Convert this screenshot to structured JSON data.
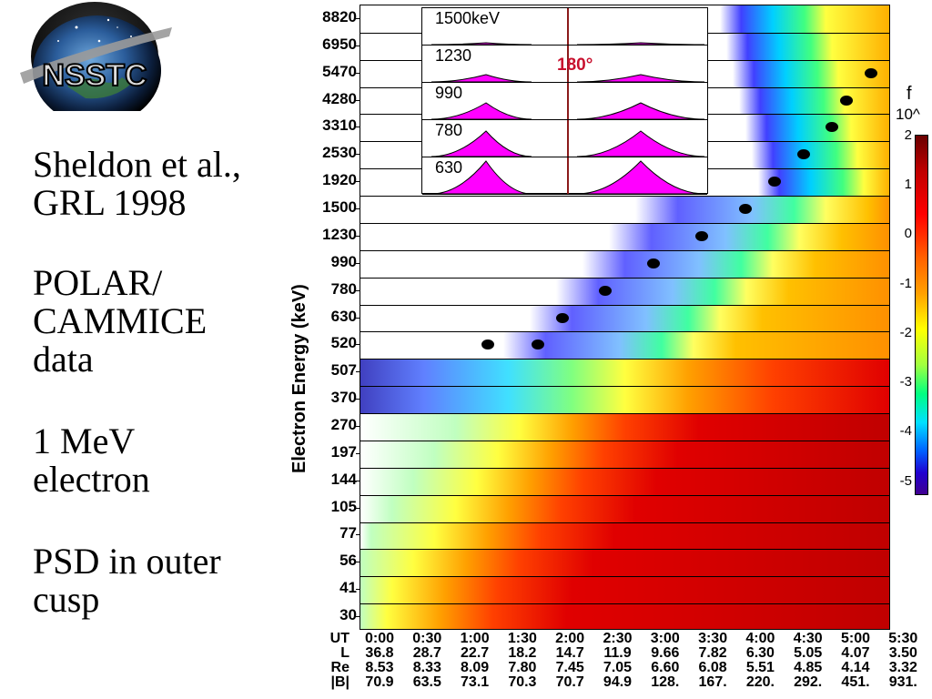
{
  "logo": {
    "text": "NSSTC"
  },
  "caption": {
    "lines": [
      [
        "Sheldon et al.,",
        "GRL 1998"
      ],
      [
        "POLAR/",
        "CAMMICE",
        "data"
      ],
      [
        "1 MeV",
        "electron"
      ],
      [
        "PSD in outer",
        "cusp"
      ]
    ]
  },
  "chart_data": {
    "type": "heatmap",
    "ylabel": "Electron Energy (keV)",
    "energy_channels": [
      "8820",
      "6950",
      "5470",
      "4280",
      "3310",
      "2530",
      "1920",
      "1500",
      "1230",
      "990",
      "780",
      "630",
      "520",
      "507",
      "370",
      "270",
      "197",
      "144",
      "105",
      "77",
      "56",
      "41",
      "30"
    ],
    "x_ticks_ut": [
      "0:00",
      "0:30",
      "1:00",
      "1:30",
      "2:00",
      "2:30",
      "3:00",
      "3:30",
      "4:00",
      "4:30",
      "5:00",
      "5:30"
    ],
    "L": [
      "36.8",
      "28.7",
      "22.7",
      "18.2",
      "14.7",
      "11.9",
      "9.66",
      "7.82",
      "6.30",
      "5.05",
      "4.07",
      "3.50"
    ],
    "Re": [
      "8.53",
      "8.33",
      "8.09",
      "7.80",
      "7.45",
      "7.05",
      "6.60",
      "6.08",
      "5.51",
      "4.85",
      "4.14",
      "3.32"
    ],
    "B": [
      "70.9",
      "63.5",
      "73.1",
      "70.3",
      "70.7",
      "94.9",
      "128.",
      "167.",
      "220.",
      "292.",
      "451.",
      "931."
    ],
    "row_keys": [
      "UT",
      "L",
      "Re",
      "|B|"
    ],
    "colorbar": {
      "title": "f",
      "unit": "10^",
      "ticks": [
        "2",
        "1",
        "0",
        "-1",
        "-2",
        "-3",
        "-4",
        "-5"
      ]
    },
    "inset": {
      "labels": [
        "1500keV",
        "1230",
        "990",
        "780",
        "630"
      ],
      "marker": "180°"
    },
    "dots": [
      {
        "ut_hours": 1.33,
        "energy_channel": "520"
      },
      {
        "ut_hours": 1.85,
        "energy_channel": "520"
      },
      {
        "ut_hours": 2.1,
        "energy_channel": "630"
      },
      {
        "ut_hours": 2.55,
        "energy_channel": "780"
      },
      {
        "ut_hours": 3.05,
        "energy_channel": "990"
      },
      {
        "ut_hours": 3.55,
        "energy_channel": "1230"
      },
      {
        "ut_hours": 4.0,
        "energy_channel": "1500"
      },
      {
        "ut_hours": 4.3,
        "energy_channel": "1920"
      },
      {
        "ut_hours": 4.6,
        "energy_channel": "2530"
      },
      {
        "ut_hours": 4.9,
        "energy_channel": "3310"
      },
      {
        "ut_hours": 5.05,
        "energy_channel": "4280"
      },
      {
        "ut_hours": 5.3,
        "energy_channel": "5470"
      }
    ]
  }
}
